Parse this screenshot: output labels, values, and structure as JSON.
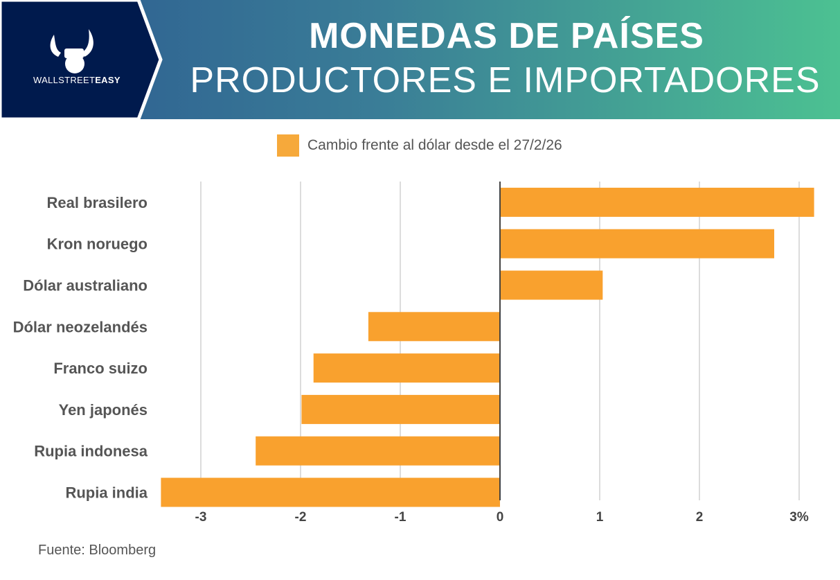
{
  "header": {
    "logo_text_light": "WALLSTREET",
    "logo_text_bold": "EASY",
    "title_line1": "MONEDAS DE PAÍSES",
    "title_line2": "PRODUCTORES E IMPORTADORES"
  },
  "source": "Fuente: Bloomberg",
  "colors": {
    "bar": "#f9a12e",
    "navy": "#001a4d"
  },
  "chart_data": {
    "type": "bar",
    "orientation": "horizontal",
    "legend": [
      "Cambio frente al dólar desde el 27/2/26"
    ],
    "legend_placement": "top",
    "categories": [
      "Real brasilero",
      "Kron noruego",
      "Dólar australiano",
      "Dólar neozelandés",
      "Franco suizo",
      "Yen japonés",
      "Rupia indonesa",
      "Rupia india"
    ],
    "values": [
      3.15,
      2.75,
      1.03,
      -1.32,
      -1.87,
      -1.99,
      -2.45,
      -3.4
    ],
    "xlim": [
      -3.4,
      3.15
    ],
    "ticks": [
      -3,
      -2,
      -1,
      0,
      1,
      2,
      3
    ],
    "tick_labels": [
      "-3",
      "-2",
      "-1",
      "0",
      "1",
      "2",
      "3%"
    ],
    "grid": true,
    "unit": "%"
  }
}
